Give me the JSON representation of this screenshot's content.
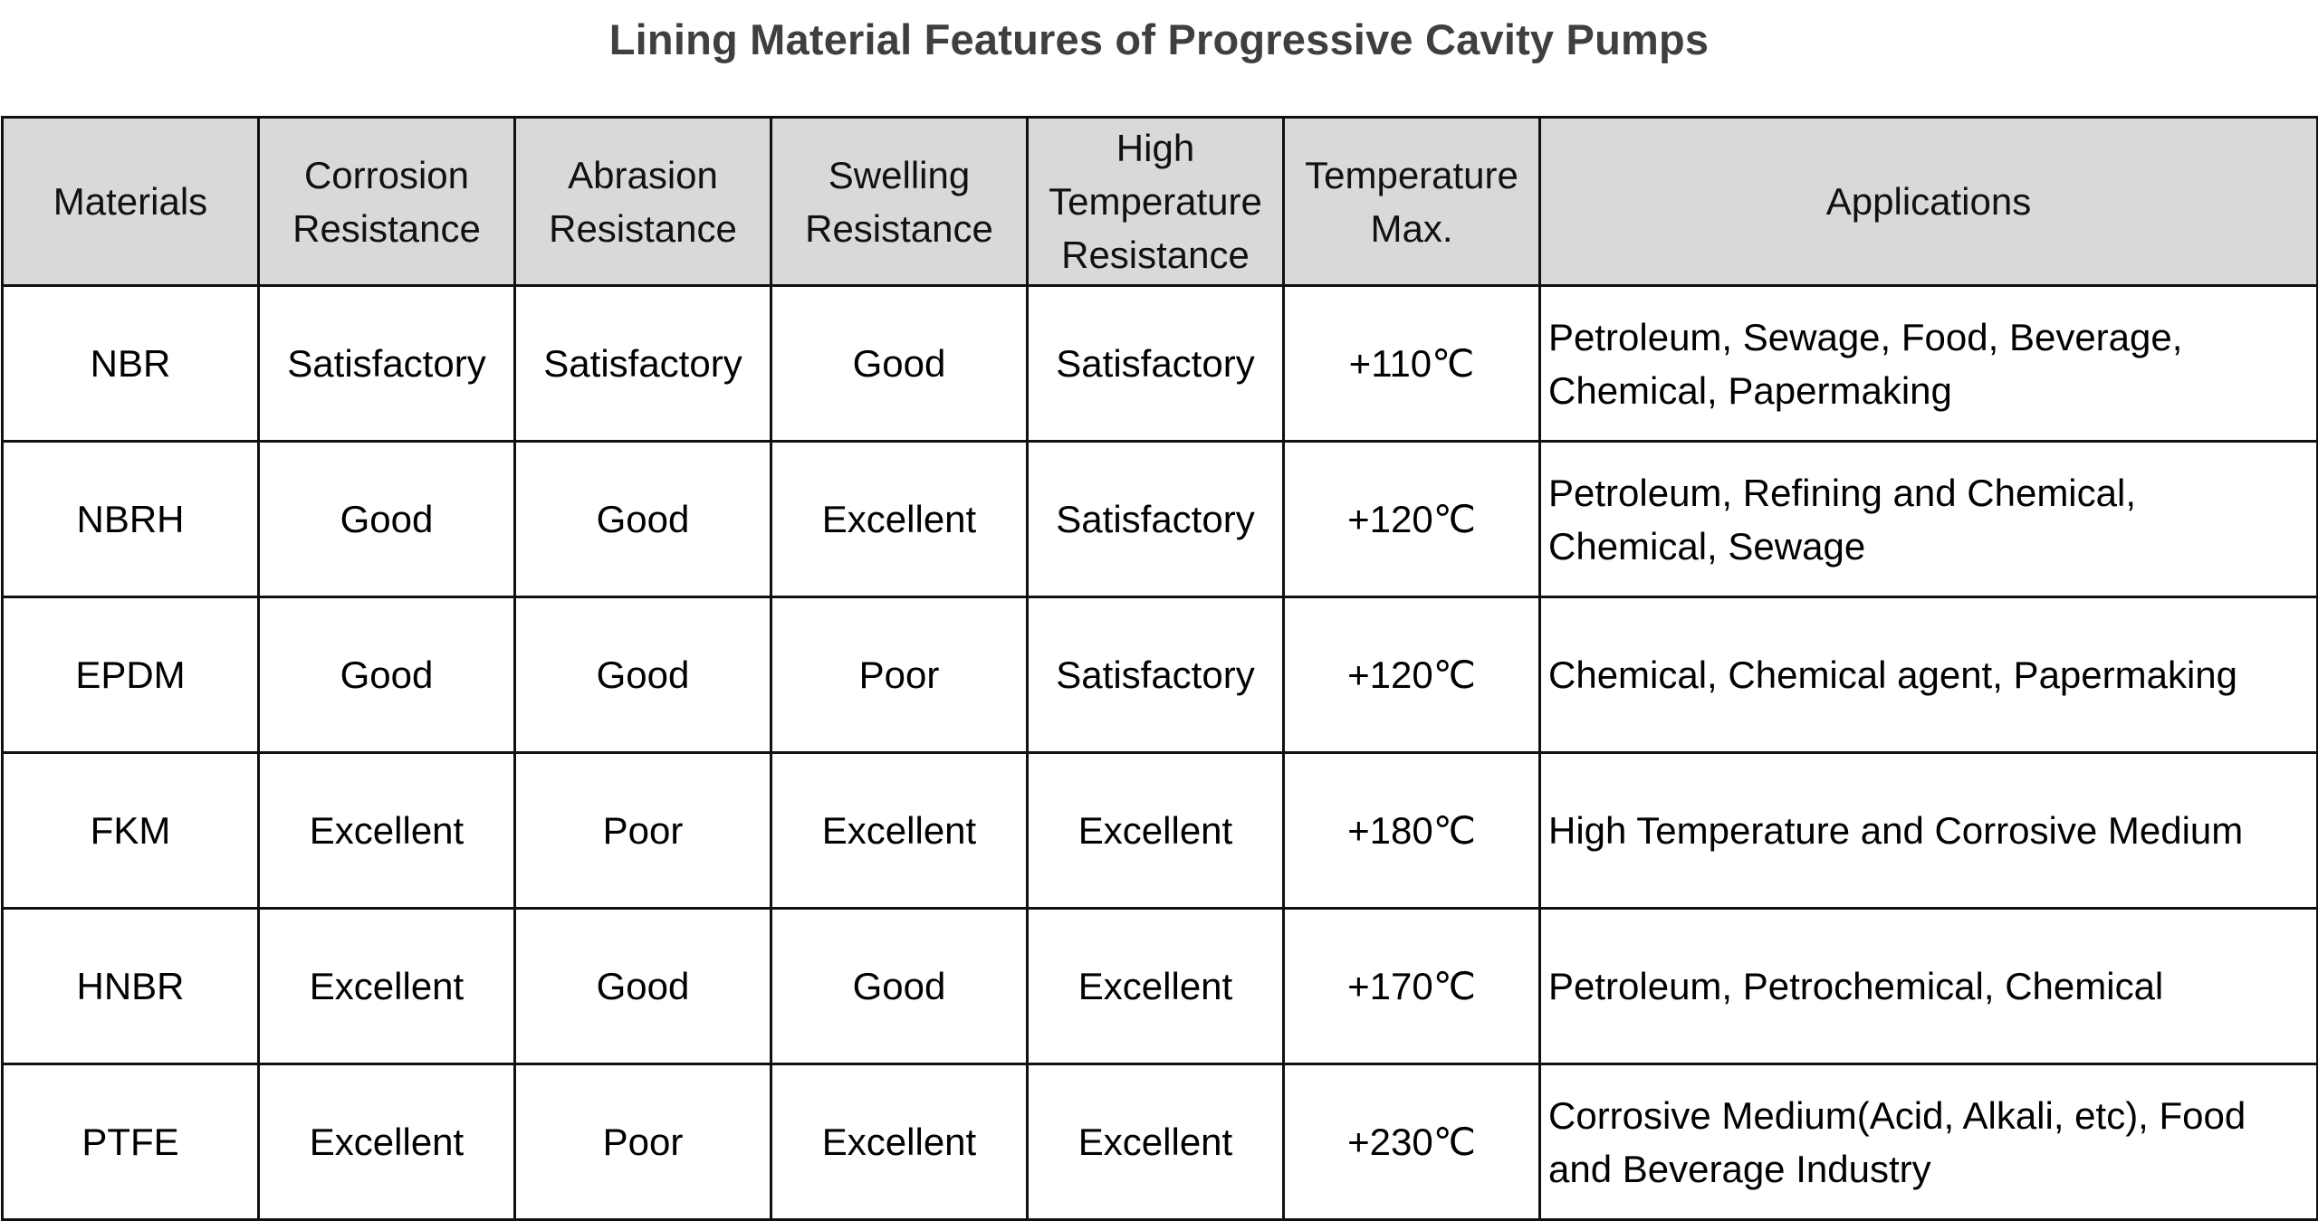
{
  "title": "Lining Material Features of Progressive Cavity Pumps",
  "columns": [
    "Materials",
    "Corrosion Resistance",
    "Abrasion Resistance",
    "Swelling Resistance",
    "High Temperature Resistance",
    "Temperature Max.",
    "Applications"
  ],
  "rows": [
    {
      "material": "NBR",
      "corrosion": "Satisfactory",
      "abrasion": "Satisfactory",
      "swelling": "Good",
      "high_temp": "Satisfactory",
      "temp_max": "+110℃",
      "applications": "Petroleum, Sewage, Food, Beverage, Chemical, Papermaking"
    },
    {
      "material": "NBRH",
      "corrosion": "Good",
      "abrasion": "Good",
      "swelling": "Excellent",
      "high_temp": "Satisfactory",
      "temp_max": "+120℃",
      "applications": "Petroleum, Refining and Chemical, Chemical, Sewage"
    },
    {
      "material": "EPDM",
      "corrosion": "Good",
      "abrasion": "Good",
      "swelling": "Poor",
      "high_temp": "Satisfactory",
      "temp_max": "+120℃",
      "applications": "Chemical, Chemical agent, Papermaking"
    },
    {
      "material": "FKM",
      "corrosion": "Excellent",
      "abrasion": "Poor",
      "swelling": "Excellent",
      "high_temp": "Excellent",
      "temp_max": "+180℃",
      "applications": "High Temperature and Corrosive Medium"
    },
    {
      "material": "HNBR",
      "corrosion": "Excellent",
      "abrasion": "Good",
      "swelling": "Good",
      "high_temp": "Excellent",
      "temp_max": "+170℃",
      "applications": "Petroleum, Petrochemical, Chemical"
    },
    {
      "material": "PTFE",
      "corrosion": "Excellent",
      "abrasion": "Poor",
      "swelling": "Excellent",
      "high_temp": "Excellent",
      "temp_max": "+230℃",
      "applications": "Corrosive Medium(Acid, Alkali, etc), Food and Beverage Industry"
    }
  ],
  "colors": {
    "header_background": "#d9d9d9",
    "border": "#111111",
    "title_text": "#3f3f3f",
    "body_text": "#000000"
  }
}
